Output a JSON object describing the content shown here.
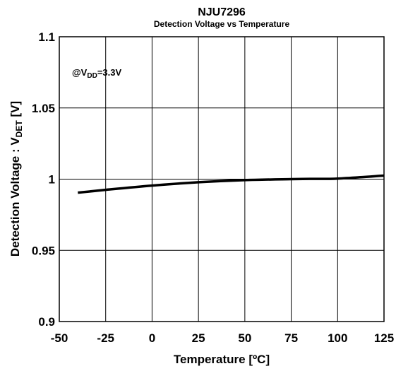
{
  "chart_data": {
    "type": "line",
    "title": "NJU7296",
    "subtitle": "Detection Voltage vs Temperature",
    "xlabel": "Temperature [ºC]",
    "ylabel_main": "Detection Voltage : V",
    "ylabel_sub": "DET",
    "ylabel_unit": " [V]",
    "annotation": {
      "prefix": "@V",
      "sub": "DD",
      "suffix": "=3.3V"
    },
    "xlim": [
      -50,
      125
    ],
    "ylim": [
      0.9,
      1.1
    ],
    "x_ticks": [
      -50,
      -25,
      0,
      25,
      50,
      75,
      100,
      125
    ],
    "x_tick_labels": [
      "-50",
      "-25",
      "0",
      "25",
      "50",
      "75",
      "100",
      "125"
    ],
    "y_ticks": [
      0.9,
      0.95,
      1.0,
      1.05,
      1.1
    ],
    "y_tick_labels": [
      "0.9",
      "0.95",
      "1",
      "1.05",
      "1.1"
    ],
    "grid": true,
    "series": [
      {
        "color": "#000000",
        "x": [
          -40,
          -25,
          0,
          25,
          50,
          75,
          85,
          100,
          125
        ],
        "y": [
          0.9905,
          0.9925,
          0.9955,
          0.9978,
          0.9993,
          1.0,
          1.0002,
          1.0004,
          1.0025
        ]
      }
    ]
  }
}
